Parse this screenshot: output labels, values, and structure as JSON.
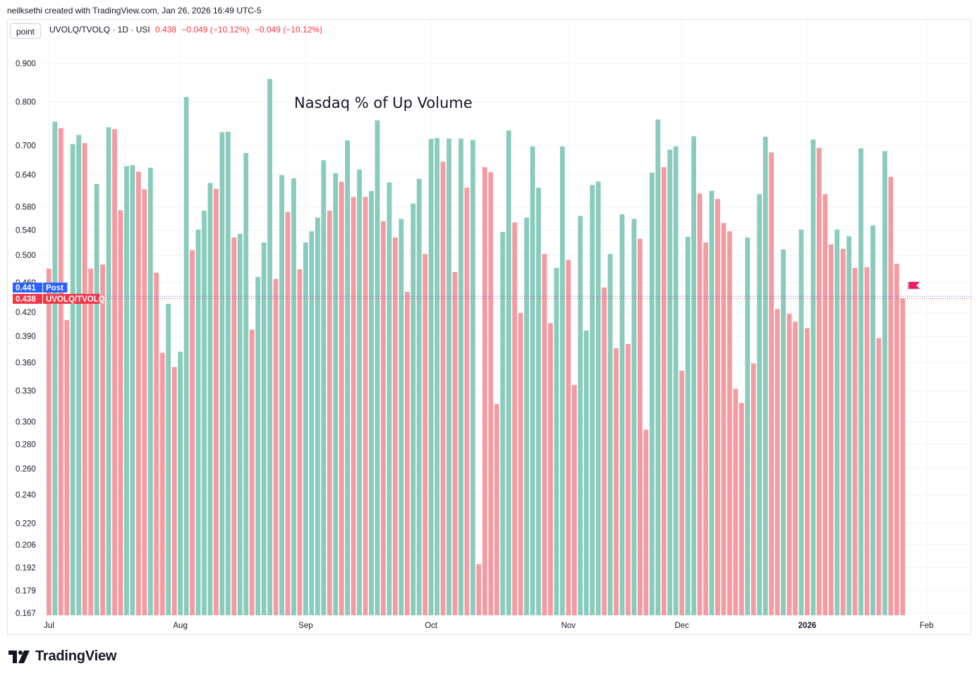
{
  "header": {
    "credit": "neilksethi created with TradingView.com, Jan 26, 2026 16:49 UTC-5",
    "scale_button": "point",
    "symbol": "UVOLQ/TVOLQ · 1D · USI",
    "last": "0.438",
    "change1": "−0.049 (−10.12%)",
    "change2": "−0.049 (−10.12%)"
  },
  "brand": {
    "name": "TradingView",
    "logo_icon": "tradingview-logo-icon"
  },
  "colors": {
    "up": "#89cbbc",
    "down": "#f49ba1",
    "post_tag": "#2962ff",
    "price_tag": "#f23645",
    "flag": "#e91e63"
  },
  "chart_data": {
    "type": "bar",
    "title": "Nasdaq % of Up Volume",
    "series_name": "UVOLQ/TVOLQ",
    "y_scale": "log",
    "ylim": [
      0.167,
      0.95
    ],
    "y_ticks": [
      "0.900",
      "0.800",
      "0.700",
      "0.640",
      "0.580",
      "0.540",
      "0.500",
      "0.460",
      "0.420",
      "0.390",
      "0.360",
      "0.330",
      "0.300",
      "0.280",
      "0.260",
      "0.240",
      "0.220",
      "0.206",
      "0.192",
      "0.179",
      "0.167"
    ],
    "x_ticks": [
      {
        "label": "Jul",
        "index": 0
      },
      {
        "label": "Aug",
        "index": 22
      },
      {
        "label": "Sep",
        "index": 43
      },
      {
        "label": "Oct",
        "index": 64
      },
      {
        "label": "Nov",
        "index": 87
      },
      {
        "label": "Dec",
        "index": 106
      },
      {
        "label": "2026",
        "index": 127,
        "bold": true
      },
      {
        "label": "Feb",
        "index": 147
      }
    ],
    "bars": [
      {
        "v": 0.48,
        "up": false
      },
      {
        "v": 0.753,
        "up": true
      },
      {
        "v": 0.738,
        "up": false
      },
      {
        "v": 0.41,
        "up": false
      },
      {
        "v": 0.703,
        "up": true
      },
      {
        "v": 0.723,
        "up": true
      },
      {
        "v": 0.705,
        "up": false
      },
      {
        "v": 0.48,
        "up": false
      },
      {
        "v": 0.622,
        "up": true
      },
      {
        "v": 0.486,
        "up": false
      },
      {
        "v": 0.74,
        "up": true
      },
      {
        "v": 0.736,
        "up": false
      },
      {
        "v": 0.574,
        "up": false
      },
      {
        "v": 0.657,
        "up": true
      },
      {
        "v": 0.659,
        "up": true
      },
      {
        "v": 0.646,
        "up": false
      },
      {
        "v": 0.612,
        "up": false
      },
      {
        "v": 0.654,
        "up": true
      },
      {
        "v": 0.474,
        "up": false
      },
      {
        "v": 0.371,
        "up": false
      },
      {
        "v": 0.431,
        "up": true
      },
      {
        "v": 0.355,
        "up": false
      },
      {
        "v": 0.372,
        "up": true
      },
      {
        "v": 0.812,
        "up": true
      },
      {
        "v": 0.508,
        "up": false
      },
      {
        "v": 0.541,
        "up": true
      },
      {
        "v": 0.573,
        "up": true
      },
      {
        "v": 0.624,
        "up": true
      },
      {
        "v": 0.613,
        "up": false
      },
      {
        "v": 0.729,
        "up": true
      },
      {
        "v": 0.73,
        "up": true
      },
      {
        "v": 0.528,
        "up": false
      },
      {
        "v": 0.534,
        "up": true
      },
      {
        "v": 0.684,
        "up": true
      },
      {
        "v": 0.398,
        "up": false
      },
      {
        "v": 0.468,
        "up": true
      },
      {
        "v": 0.52,
        "up": true
      },
      {
        "v": 0.858,
        "up": true
      },
      {
        "v": 0.465,
        "up": false
      },
      {
        "v": 0.639,
        "up": true
      },
      {
        "v": 0.571,
        "up": false
      },
      {
        "v": 0.633,
        "up": true
      },
      {
        "v": 0.479,
        "up": false
      },
      {
        "v": 0.52,
        "up": true
      },
      {
        "v": 0.538,
        "up": true
      },
      {
        "v": 0.561,
        "up": true
      },
      {
        "v": 0.669,
        "up": true
      },
      {
        "v": 0.573,
        "up": false
      },
      {
        "v": 0.643,
        "up": true
      },
      {
        "v": 0.626,
        "up": false
      },
      {
        "v": 0.711,
        "up": true
      },
      {
        "v": 0.598,
        "up": false
      },
      {
        "v": 0.65,
        "up": true
      },
      {
        "v": 0.598,
        "up": false
      },
      {
        "v": 0.609,
        "up": true
      },
      {
        "v": 0.756,
        "up": true
      },
      {
        "v": 0.555,
        "up": false
      },
      {
        "v": 0.625,
        "up": true
      },
      {
        "v": 0.528,
        "up": false
      },
      {
        "v": 0.559,
        "up": true
      },
      {
        "v": 0.447,
        "up": false
      },
      {
        "v": 0.586,
        "up": true
      },
      {
        "v": 0.632,
        "up": true
      },
      {
        "v": 0.502,
        "up": false
      },
      {
        "v": 0.714,
        "up": true
      },
      {
        "v": 0.716,
        "up": true
      },
      {
        "v": 0.666,
        "up": false
      },
      {
        "v": 0.715,
        "up": true
      },
      {
        "v": 0.475,
        "up": false
      },
      {
        "v": 0.715,
        "up": true
      },
      {
        "v": 0.615,
        "up": false
      },
      {
        "v": 0.712,
        "up": true
      },
      {
        "v": 0.194,
        "up": false
      },
      {
        "v": 0.655,
        "up": false
      },
      {
        "v": 0.645,
        "up": false
      },
      {
        "v": 0.317,
        "up": false
      },
      {
        "v": 0.537,
        "up": true
      },
      {
        "v": 0.733,
        "up": true
      },
      {
        "v": 0.553,
        "up": false
      },
      {
        "v": 0.419,
        "up": false
      },
      {
        "v": 0.561,
        "up": true
      },
      {
        "v": 0.698,
        "up": true
      },
      {
        "v": 0.615,
        "up": true
      },
      {
        "v": 0.502,
        "up": false
      },
      {
        "v": 0.406,
        "up": false
      },
      {
        "v": 0.481,
        "up": true
      },
      {
        "v": 0.698,
        "up": true
      },
      {
        "v": 0.493,
        "up": false
      },
      {
        "v": 0.336,
        "up": false
      },
      {
        "v": 0.564,
        "up": true
      },
      {
        "v": 0.397,
        "up": true
      },
      {
        "v": 0.62,
        "up": true
      },
      {
        "v": 0.627,
        "up": true
      },
      {
        "v": 0.453,
        "up": false
      },
      {
        "v": 0.502,
        "up": true
      },
      {
        "v": 0.376,
        "up": false
      },
      {
        "v": 0.567,
        "up": true
      },
      {
        "v": 0.381,
        "up": false
      },
      {
        "v": 0.559,
        "up": true
      },
      {
        "v": 0.526,
        "up": false
      },
      {
        "v": 0.293,
        "up": false
      },
      {
        "v": 0.644,
        "up": true
      },
      {
        "v": 0.758,
        "up": true
      },
      {
        "v": 0.655,
        "up": false
      },
      {
        "v": 0.691,
        "up": true
      },
      {
        "v": 0.698,
        "up": true
      },
      {
        "v": 0.351,
        "up": false
      },
      {
        "v": 0.529,
        "up": true
      },
      {
        "v": 0.72,
        "up": true
      },
      {
        "v": 0.604,
        "up": false
      },
      {
        "v": 0.52,
        "up": false
      },
      {
        "v": 0.609,
        "up": true
      },
      {
        "v": 0.594,
        "up": false
      },
      {
        "v": 0.552,
        "up": false
      },
      {
        "v": 0.538,
        "up": false
      },
      {
        "v": 0.332,
        "up": false
      },
      {
        "v": 0.318,
        "up": false
      },
      {
        "v": 0.528,
        "up": true
      },
      {
        "v": 0.359,
        "up": false
      },
      {
        "v": 0.603,
        "up": true
      },
      {
        "v": 0.719,
        "up": true
      },
      {
        "v": 0.685,
        "up": false
      },
      {
        "v": 0.424,
        "up": false
      },
      {
        "v": 0.509,
        "up": true
      },
      {
        "v": 0.418,
        "up": false
      },
      {
        "v": 0.408,
        "up": false
      },
      {
        "v": 0.541,
        "up": true
      },
      {
        "v": 0.4,
        "up": false
      },
      {
        "v": 0.713,
        "up": true
      },
      {
        "v": 0.695,
        "up": false
      },
      {
        "v": 0.603,
        "up": false
      },
      {
        "v": 0.517,
        "up": false
      },
      {
        "v": 0.541,
        "up": true
      },
      {
        "v": 0.51,
        "up": false
      },
      {
        "v": 0.53,
        "up": true
      },
      {
        "v": 0.481,
        "up": false
      },
      {
        "v": 0.694,
        "up": true
      },
      {
        "v": 0.482,
        "up": false
      },
      {
        "v": 0.548,
        "up": true
      },
      {
        "v": 0.388,
        "up": false
      },
      {
        "v": 0.688,
        "up": true
      },
      {
        "v": 0.636,
        "up": false
      },
      {
        "v": 0.487,
        "up": false
      },
      {
        "v": 0.438,
        "up": false
      }
    ],
    "tags": [
      {
        "text": "0.441",
        "label": "Post",
        "value": 0.441,
        "color": "#2962ff"
      },
      {
        "text": "0.438",
        "label": "UVOLQ/TVOLQ",
        "value": 0.438,
        "color": "#f23645"
      }
    ]
  }
}
